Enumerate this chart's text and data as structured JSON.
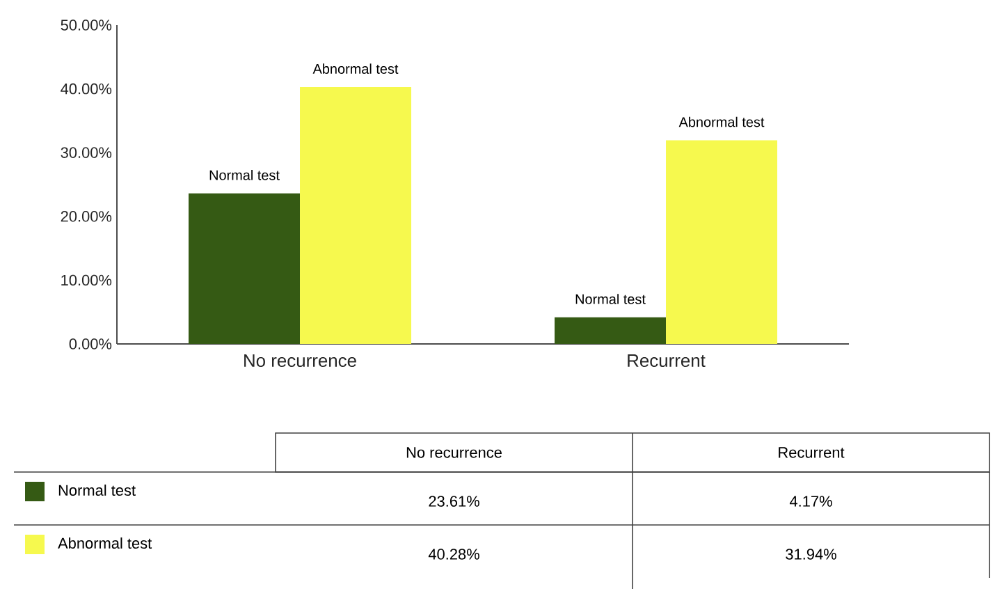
{
  "chart_data": {
    "type": "bar",
    "categories": [
      "No recurrence",
      "Recurrent"
    ],
    "series": [
      {
        "name": "Normal test",
        "color": "#355a14",
        "values": [
          23.61,
          4.17
        ],
        "value_labels": [
          "23.61%",
          "4.17%"
        ]
      },
      {
        "name": "Abnormal test",
        "color": "#f6f94e",
        "values": [
          40.28,
          31.94
        ],
        "value_labels": [
          "40.28%",
          "31.94%"
        ]
      }
    ],
    "ylim": [
      0,
      50
    ],
    "yticks": [
      {
        "value": 0,
        "label": "0.00%"
      },
      {
        "value": 10,
        "label": "10.00%"
      },
      {
        "value": 20,
        "label": "20.00%"
      },
      {
        "value": 30,
        "label": "30.00%"
      },
      {
        "value": 40,
        "label": "40.00%"
      },
      {
        "value": 50,
        "label": "50.00%"
      }
    ],
    "legend": "bottom"
  }
}
